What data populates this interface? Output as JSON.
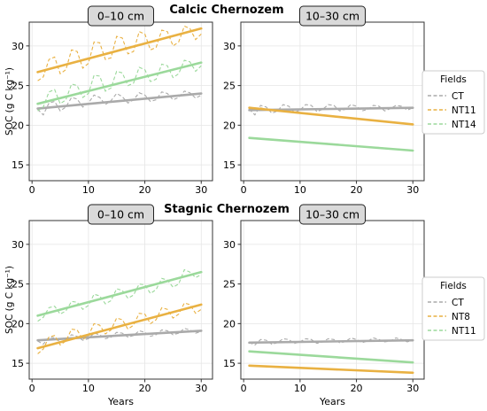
{
  "figure": {
    "rows": [
      {
        "row_title": "Calcic Chernozem",
        "legend": {
          "title": "Fields",
          "entries": [
            "CT",
            "NT11",
            "NT14"
          ]
        }
      },
      {
        "row_title": "Stagnic Chernozem",
        "legend": {
          "title": "Fields",
          "entries": [
            "CT",
            "NT8",
            "NT11"
          ]
        }
      }
    ]
  },
  "colors": {
    "gray": "#aaaaaa",
    "orange": "#e9b142",
    "green": "#9bd99b"
  },
  "chart_data": [
    {
      "type": "line",
      "panel_label": "0–10 cm",
      "xlabel": "",
      "ylabel": "SOC (g C kg⁻¹)",
      "xlim": [
        -0.5,
        32
      ],
      "ylim": [
        13,
        33
      ],
      "xticks": [
        0,
        10,
        20,
        30
      ],
      "yticks": [
        15,
        20,
        25,
        30
      ],
      "grid": true,
      "series": [
        {
          "name": "CT",
          "color_key": "gray",
          "trend_start": [
            1,
            22.1
          ],
          "trend_end": [
            30,
            24.0
          ],
          "x": [
            1,
            2,
            3,
            4,
            5,
            6,
            7,
            8,
            9,
            10,
            11,
            12,
            13,
            14,
            15,
            16,
            17,
            18,
            19,
            20,
            21,
            22,
            23,
            24,
            25,
            26,
            27,
            28,
            29,
            30
          ],
          "values": [
            22.0,
            21.3,
            22.8,
            23.0,
            21.8,
            22.3,
            23.5,
            23.3,
            22.3,
            22.8,
            23.8,
            23.5,
            22.6,
            23.1,
            24.0,
            23.6,
            22.8,
            23.2,
            24.1,
            23.8,
            23.0,
            23.2,
            24.2,
            24.0,
            23.2,
            23.5,
            24.3,
            24.1,
            23.4,
            23.8
          ]
        },
        {
          "name": "NT11",
          "color_key": "orange",
          "trend_start": [
            1,
            26.7
          ],
          "trend_end": [
            30,
            32.2
          ],
          "x": [
            1,
            2,
            3,
            4,
            5,
            6,
            7,
            8,
            9,
            10,
            11,
            12,
            13,
            14,
            15,
            16,
            17,
            18,
            19,
            20,
            21,
            22,
            23,
            24,
            25,
            26,
            27,
            28,
            29,
            30
          ],
          "values": [
            25.6,
            26.1,
            28.3,
            28.6,
            26.5,
            27.0,
            29.5,
            29.3,
            27.2,
            27.8,
            30.5,
            30.4,
            28.3,
            28.5,
            31.2,
            31.0,
            29.0,
            29.3,
            31.8,
            31.5,
            29.5,
            29.8,
            32.0,
            31.8,
            30.0,
            30.5,
            32.5,
            32.2,
            30.8,
            31.5
          ]
        },
        {
          "name": "NT14",
          "color_key": "green",
          "trend_start": [
            1,
            22.7
          ],
          "trend_end": [
            30,
            27.9
          ],
          "x": [
            1,
            2,
            3,
            4,
            5,
            6,
            7,
            8,
            9,
            10,
            11,
            12,
            13,
            14,
            15,
            16,
            17,
            18,
            19,
            20,
            21,
            22,
            23,
            24,
            25,
            26,
            27,
            28,
            29,
            30
          ],
          "values": [
            21.8,
            22.3,
            24.2,
            24.5,
            22.7,
            23.2,
            25.2,
            25.0,
            23.5,
            24.0,
            26.3,
            26.2,
            24.3,
            24.7,
            26.8,
            26.6,
            25.0,
            25.3,
            27.3,
            27.0,
            25.5,
            25.8,
            27.7,
            27.5,
            26.0,
            26.5,
            28.2,
            28.0,
            26.8,
            27.5
          ]
        }
      ]
    },
    {
      "type": "line",
      "panel_label": "10–30 cm",
      "xlabel": "",
      "ylabel": "",
      "xlim": [
        -0.5,
        32
      ],
      "ylim": [
        13,
        33
      ],
      "xticks": [
        0,
        10,
        20,
        30
      ],
      "yticks": [
        15,
        20,
        25,
        30
      ],
      "grid": true,
      "legend_position": "right",
      "series": [
        {
          "name": "CT",
          "color_key": "gray",
          "trend_start": [
            1,
            21.9
          ],
          "trend_end": [
            30,
            22.2
          ],
          "x": [
            1,
            2,
            3,
            4,
            5,
            6,
            7,
            8,
            9,
            10,
            11,
            12,
            13,
            14,
            15,
            16,
            17,
            18,
            19,
            20,
            21,
            22,
            23,
            24,
            25,
            26,
            27,
            28,
            29,
            30
          ],
          "values": [
            22.0,
            21.3,
            22.5,
            22.3,
            21.5,
            21.8,
            22.6,
            22.4,
            21.6,
            21.9,
            22.6,
            22.5,
            21.7,
            22.0,
            22.6,
            22.5,
            21.8,
            22.0,
            22.6,
            22.4,
            21.8,
            22.0,
            22.5,
            22.4,
            21.8,
            22.1,
            22.5,
            22.4,
            21.9,
            22.2
          ]
        },
        {
          "name": "NT11",
          "color_key": "orange",
          "trend_start": [
            1,
            22.2
          ],
          "trend_end": [
            30,
            20.1
          ],
          "x": [
            1,
            2,
            3,
            4,
            5,
            6,
            7,
            8,
            9,
            10,
            11,
            12,
            13,
            14,
            15,
            16,
            17,
            18,
            19,
            20,
            21,
            22,
            23,
            24,
            25,
            26,
            27,
            28,
            29,
            30
          ],
          "values": [
            22.3,
            22.1,
            22.2,
            22.0,
            21.9,
            21.9,
            21.8,
            21.7,
            21.6,
            21.6,
            21.5,
            21.4,
            21.3,
            21.3,
            21.2,
            21.1,
            21.0,
            21.0,
            20.9,
            20.8,
            20.8,
            20.7,
            20.6,
            20.5,
            20.5,
            20.4,
            20.3,
            20.2,
            20.2,
            20.1
          ]
        },
        {
          "name": "NT14",
          "color_key": "green",
          "trend_start": [
            1,
            18.4
          ],
          "trend_end": [
            30,
            16.8
          ],
          "x": [
            1,
            2,
            3,
            4,
            5,
            6,
            7,
            8,
            9,
            10,
            11,
            12,
            13,
            14,
            15,
            16,
            17,
            18,
            19,
            20,
            21,
            22,
            23,
            24,
            25,
            26,
            27,
            28,
            29,
            30
          ],
          "values": [
            18.4,
            18.4,
            18.3,
            18.3,
            18.2,
            18.1,
            18.1,
            18.0,
            18.0,
            17.9,
            17.9,
            17.8,
            17.8,
            17.7,
            17.7,
            17.6,
            17.6,
            17.5,
            17.4,
            17.4,
            17.3,
            17.3,
            17.2,
            17.2,
            17.1,
            17.0,
            17.0,
            16.9,
            16.9,
            16.8
          ]
        }
      ]
    },
    {
      "type": "line",
      "panel_label": "0–10 cm",
      "xlabel": "Years",
      "ylabel": "SOC (g C kg⁻¹)",
      "xlim": [
        -0.5,
        32
      ],
      "ylim": [
        13,
        33
      ],
      "xticks": [
        0,
        10,
        20,
        30
      ],
      "yticks": [
        15,
        20,
        25,
        30
      ],
      "grid": true,
      "series": [
        {
          "name": "CT",
          "color_key": "gray",
          "trend_start": [
            1,
            17.9
          ],
          "trend_end": [
            30,
            19.1
          ],
          "x": [
            1,
            2,
            3,
            4,
            5,
            6,
            7,
            8,
            9,
            10,
            11,
            12,
            13,
            14,
            15,
            16,
            17,
            18,
            19,
            20,
            21,
            22,
            23,
            24,
            25,
            26,
            27,
            28,
            29,
            30
          ],
          "values": [
            17.8,
            17.4,
            18.3,
            18.2,
            17.7,
            17.9,
            18.6,
            18.4,
            17.9,
            18.1,
            18.8,
            18.6,
            18.1,
            18.3,
            18.9,
            18.8,
            18.3,
            18.5,
            19.1,
            18.9,
            18.4,
            18.6,
            19.2,
            19.1,
            18.6,
            18.8,
            19.4,
            19.2,
            18.8,
            19.0
          ]
        },
        {
          "name": "NT8",
          "color_key": "orange",
          "trend_start": [
            1,
            16.9
          ],
          "trend_end": [
            30,
            22.4
          ],
          "x": [
            1,
            2,
            3,
            4,
            5,
            6,
            7,
            8,
            9,
            10,
            11,
            12,
            13,
            14,
            15,
            16,
            17,
            18,
            19,
            20,
            21,
            22,
            23,
            24,
            25,
            26,
            27,
            28,
            29,
            30
          ],
          "values": [
            16.2,
            16.8,
            18.3,
            18.5,
            17.3,
            17.8,
            19.3,
            19.2,
            18.0,
            18.5,
            20.0,
            19.8,
            18.7,
            19.2,
            20.7,
            20.5,
            19.3,
            19.8,
            21.3,
            21.2,
            20.0,
            20.5,
            22.0,
            21.8,
            20.7,
            21.2,
            22.6,
            22.4,
            21.3,
            21.8
          ]
        },
        {
          "name": "NT11",
          "color_key": "green",
          "trend_start": [
            1,
            21.0
          ],
          "trend_end": [
            30,
            26.5
          ],
          "x": [
            1,
            2,
            3,
            4,
            5,
            6,
            7,
            8,
            9,
            10,
            11,
            12,
            13,
            14,
            15,
            16,
            17,
            18,
            19,
            20,
            21,
            22,
            23,
            24,
            25,
            26,
            27,
            28,
            29,
            30
          ],
          "values": [
            20.3,
            20.8,
            22.0,
            22.2,
            21.2,
            21.6,
            22.8,
            22.7,
            21.8,
            22.3,
            23.7,
            23.5,
            22.5,
            22.9,
            24.4,
            24.2,
            23.2,
            23.6,
            25.0,
            24.9,
            23.8,
            24.3,
            25.7,
            25.5,
            24.6,
            25.0,
            26.8,
            26.5,
            25.8,
            26.2
          ]
        }
      ]
    },
    {
      "type": "line",
      "panel_label": "10–30 cm",
      "xlabel": "Years",
      "ylabel": "",
      "xlim": [
        -0.5,
        32
      ],
      "ylim": [
        13,
        33
      ],
      "xticks": [
        0,
        10,
        20,
        30
      ],
      "yticks": [
        15,
        20,
        25,
        30
      ],
      "grid": true,
      "legend_position": "right",
      "series": [
        {
          "name": "CT",
          "color_key": "gray",
          "trend_start": [
            1,
            17.6
          ],
          "trend_end": [
            30,
            17.9
          ],
          "x": [
            1,
            2,
            3,
            4,
            5,
            6,
            7,
            8,
            9,
            10,
            11,
            12,
            13,
            14,
            15,
            16,
            17,
            18,
            19,
            20,
            21,
            22,
            23,
            24,
            25,
            26,
            27,
            28,
            29,
            30
          ],
          "values": [
            17.6,
            17.3,
            18.0,
            17.9,
            17.4,
            17.6,
            18.1,
            18.0,
            17.5,
            17.7,
            18.1,
            18.0,
            17.5,
            17.7,
            18.1,
            18.0,
            17.6,
            17.7,
            18.2,
            18.0,
            17.6,
            17.8,
            18.2,
            18.0,
            17.7,
            17.8,
            18.2,
            18.0,
            17.7,
            17.9
          ]
        },
        {
          "name": "NT8",
          "color_key": "orange",
          "trend_start": [
            1,
            14.7
          ],
          "trend_end": [
            30,
            13.8
          ],
          "x": [
            1,
            2,
            3,
            4,
            5,
            6,
            7,
            8,
            9,
            10,
            11,
            12,
            13,
            14,
            15,
            16,
            17,
            18,
            19,
            20,
            21,
            22,
            23,
            24,
            25,
            26,
            27,
            28,
            29,
            30
          ],
          "values": [
            14.7,
            14.7,
            14.6,
            14.6,
            14.6,
            14.5,
            14.5,
            14.5,
            14.4,
            14.4,
            14.4,
            14.3,
            14.3,
            14.3,
            14.3,
            14.2,
            14.2,
            14.2,
            14.1,
            14.1,
            14.1,
            14.0,
            14.0,
            14.0,
            13.9,
            13.9,
            13.9,
            13.9,
            13.8,
            13.8
          ]
        },
        {
          "name": "NT11",
          "color_key": "green",
          "trend_start": [
            1,
            16.5
          ],
          "trend_end": [
            30,
            15.1
          ],
          "x": [
            1,
            2,
            3,
            4,
            5,
            6,
            7,
            8,
            9,
            10,
            11,
            12,
            13,
            14,
            15,
            16,
            17,
            18,
            19,
            20,
            21,
            22,
            23,
            24,
            25,
            26,
            27,
            28,
            29,
            30
          ],
          "values": [
            16.5,
            16.5,
            16.4,
            16.4,
            16.3,
            16.3,
            16.2,
            16.2,
            16.1,
            16.1,
            16.0,
            16.0,
            15.9,
            15.9,
            15.8,
            15.8,
            15.7,
            15.7,
            15.6,
            15.6,
            15.5,
            15.5,
            15.4,
            15.4,
            15.3,
            15.3,
            15.2,
            15.2,
            15.1,
            15.1
          ]
        }
      ]
    }
  ]
}
